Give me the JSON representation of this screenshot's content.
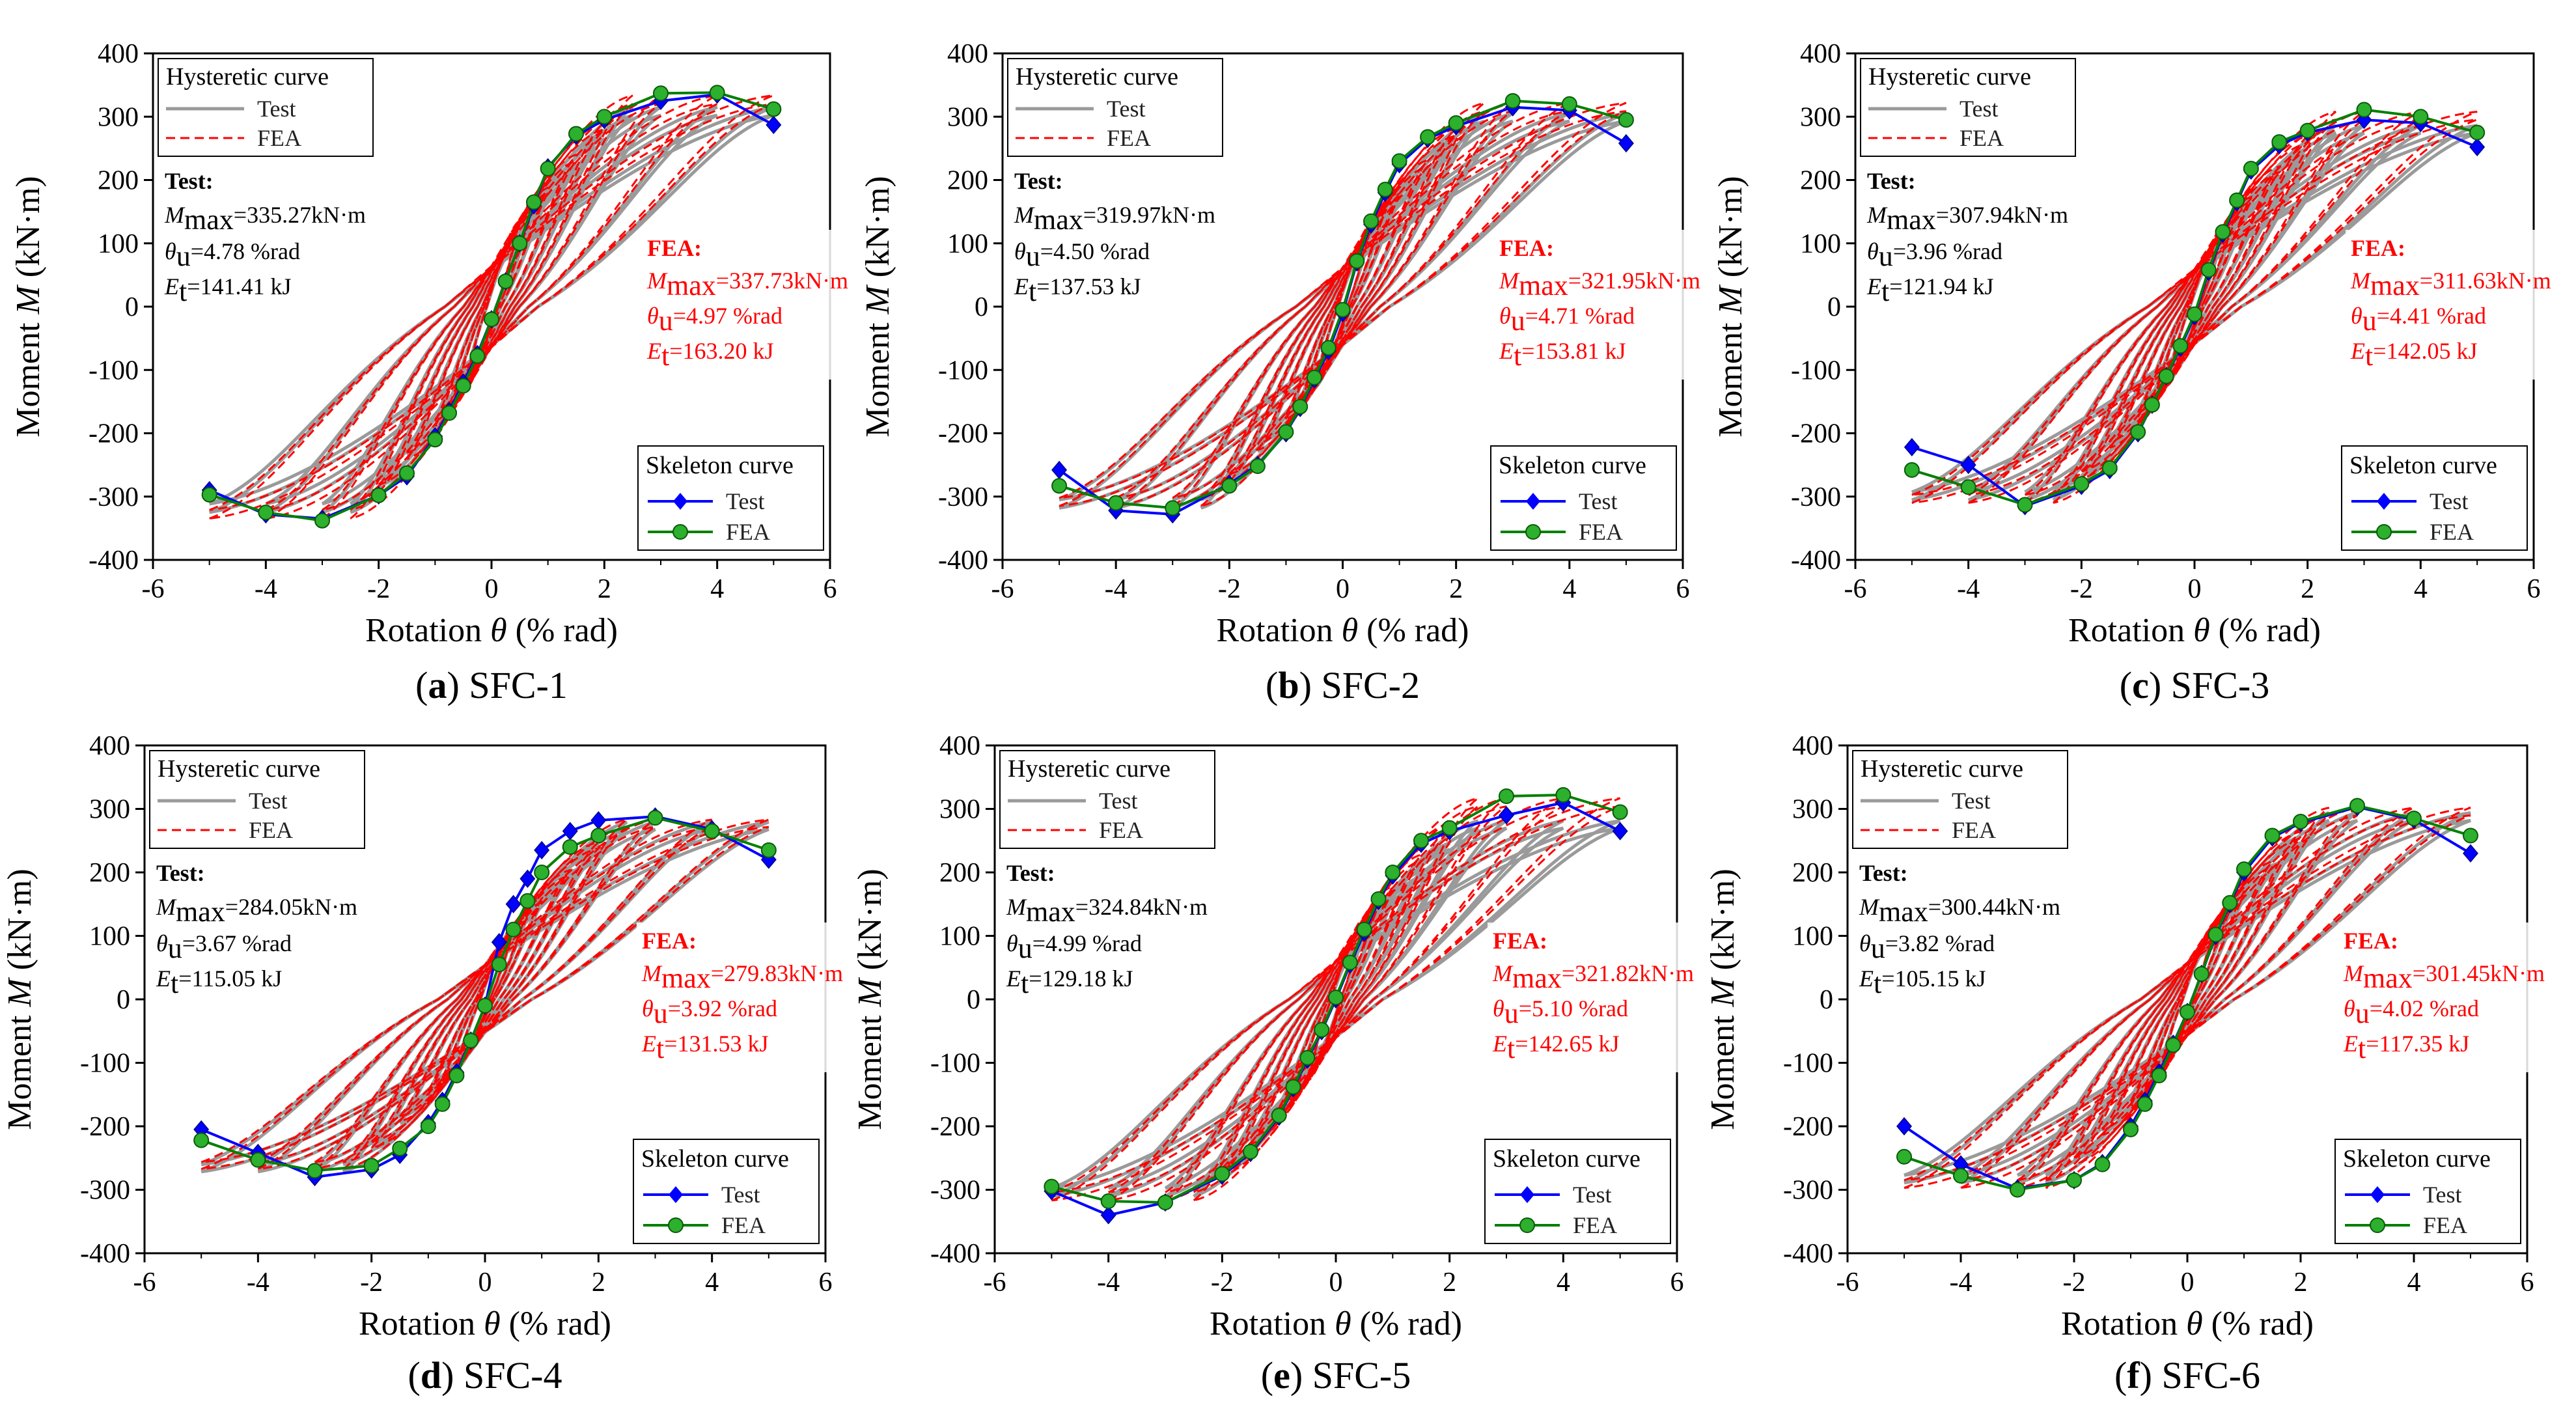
{
  "figure": {
    "axis_xlabel_prefix": "Rotation ",
    "axis_xlabel_symbol": "θ",
    "axis_xlabel_suffix": " (% rad)",
    "axis_ylabel_prefix": "Moment ",
    "axis_ylabel_symbol": "M",
    "axis_ylabel_suffix": " (kN·m)",
    "hysteretic_legend": {
      "title": "Hysteretic curve",
      "test": "Test",
      "fea": "FEA"
    },
    "skeleton_legend": {
      "title": "Skeleton curve",
      "test": "Test",
      "fea": "FEA"
    },
    "ann_test_heading": "Test:",
    "ann_fea_heading": "FEA:",
    "sym_M": "M",
    "sub_max": "max",
    "sym_theta": "θ",
    "sub_u": "u",
    "sym_E": "E",
    "sub_t": "t",
    "colors": {
      "test_skeleton": "#0000ff",
      "fea_skeleton": "#008000",
      "test_hyst": "#9a9a9a",
      "fea_hyst": "#ff0000",
      "fea_text": "#ff0000"
    }
  },
  "chart_data": [
    {
      "type": "line",
      "panel": "a",
      "label": "SFC-1",
      "xlim": [
        -6,
        6
      ],
      "ylim": [
        -400,
        400
      ],
      "xticks": [
        "-6",
        "-4",
        "-2",
        "0",
        "2",
        "4",
        "6"
      ],
      "yticks": [
        "-400",
        "-300",
        "-200",
        "-100",
        "0",
        "100",
        "200",
        "300",
        "400"
      ],
      "test": {
        "Mmax": "=335.27kN·m",
        "theta": "=4.78 %rad",
        "Et": "=141.41 kJ"
      },
      "fea": {
        "Mmax": "=337.73kN·m",
        "theta": "=4.97 %rad",
        "Et": "=163.20 kJ"
      },
      "series": [
        {
          "name": "Test",
          "x": [
            -5,
            -4,
            -3,
            -2,
            -1.5,
            -1,
            -0.75,
            -0.5,
            -0.25,
            0,
            0.25,
            0.5,
            0.75,
            1,
            1.5,
            2,
            3,
            4,
            5
          ],
          "y": [
            -290,
            -328,
            -335,
            -298,
            -268,
            -205,
            -165,
            -120,
            -75,
            -20,
            40,
            100,
            160,
            220,
            270,
            295,
            325,
            335,
            287
          ]
        },
        {
          "name": "FEA",
          "x": [
            -5,
            -4,
            -3,
            -2,
            -1.5,
            -1,
            -0.75,
            -0.5,
            -0.25,
            0,
            0.25,
            0.5,
            0.75,
            1,
            1.5,
            2,
            3,
            4,
            5
          ],
          "y": [
            -297,
            -325,
            -338,
            -298,
            -263,
            -210,
            -168,
            -125,
            -78,
            -20,
            40,
            100,
            165,
            218,
            273,
            300,
            337,
            338,
            312
          ]
        }
      ]
    },
    {
      "type": "line",
      "panel": "b",
      "label": "SFC-2",
      "xlim": [
        -6,
        6
      ],
      "ylim": [
        -400,
        400
      ],
      "xticks": [
        "-6",
        "-4",
        "-2",
        "0",
        "2",
        "4",
        "6"
      ],
      "yticks": [
        "-400",
        "-300",
        "-200",
        "-100",
        "0",
        "100",
        "200",
        "300",
        "400"
      ],
      "test": {
        "Mmax": "=319.97kN·m",
        "theta": "=4.50 %rad",
        "Et": "=137.53 kJ"
      },
      "fea": {
        "Mmax": "=321.95kN·m",
        "theta": "=4.71 %rad",
        "Et": "=153.81 kJ"
      },
      "series": [
        {
          "name": "Test",
          "x": [
            -5,
            -4,
            -3,
            -2,
            -1.5,
            -1,
            -0.75,
            -0.5,
            -0.25,
            0,
            0.25,
            0.5,
            0.75,
            1,
            1.5,
            2,
            3,
            4,
            5
          ],
          "y": [
            -258,
            -322,
            -328,
            -280,
            -250,
            -200,
            -160,
            -115,
            -70,
            -10,
            70,
            130,
            180,
            225,
            265,
            285,
            315,
            310,
            258
          ]
        },
        {
          "name": "FEA",
          "x": [
            -5,
            -4,
            -3,
            -2,
            -1.5,
            -1,
            -0.75,
            -0.5,
            -0.25,
            0,
            0.25,
            0.5,
            0.75,
            1,
            1.5,
            2,
            3,
            4,
            5
          ],
          "y": [
            -283,
            -310,
            -318,
            -283,
            -252,
            -198,
            -158,
            -112,
            -65,
            -5,
            72,
            135,
            185,
            230,
            268,
            290,
            325,
            320,
            295
          ]
        }
      ]
    },
    {
      "type": "line",
      "panel": "c",
      "label": "SFC-3",
      "xlim": [
        -6,
        6
      ],
      "ylim": [
        -400,
        400
      ],
      "xticks": [
        "-6",
        "-4",
        "-2",
        "0",
        "2",
        "4",
        "6"
      ],
      "yticks": [
        "-400",
        "-300",
        "-200",
        "-100",
        "0",
        "100",
        "200",
        "300",
        "400"
      ],
      "test": {
        "Mmax": "=307.94kN·m",
        "theta": "=3.96 %rad",
        "Et": "=121.94 kJ"
      },
      "fea": {
        "Mmax": "=311.63kN·m",
        "theta": "=4.41 %rad",
        "Et": "=142.05 kJ"
      },
      "series": [
        {
          "name": "Test",
          "x": [
            -5,
            -4,
            -3,
            -2,
            -1.5,
            -1,
            -0.75,
            -0.5,
            -0.25,
            0,
            0.25,
            0.5,
            0.75,
            1,
            1.5,
            2,
            3,
            4,
            5
          ],
          "y": [
            -222,
            -250,
            -315,
            -283,
            -258,
            -200,
            -155,
            -110,
            -65,
            -15,
            55,
            115,
            165,
            215,
            255,
            275,
            295,
            290,
            252
          ]
        },
        {
          "name": "FEA",
          "x": [
            -5,
            -4,
            -3,
            -2,
            -1.5,
            -1,
            -0.75,
            -0.5,
            -0.25,
            0,
            0.25,
            0.5,
            0.75,
            1,
            1.5,
            2,
            3,
            4,
            5
          ],
          "y": [
            -258,
            -285,
            -313,
            -280,
            -255,
            -198,
            -155,
            -110,
            -62,
            -12,
            58,
            118,
            168,
            218,
            260,
            278,
            311,
            300,
            275
          ]
        }
      ]
    },
    {
      "type": "line",
      "panel": "d",
      "label": "SFC-4",
      "xlim": [
        -6,
        6
      ],
      "ylim": [
        -400,
        400
      ],
      "xticks": [
        "-6",
        "-4",
        "-2",
        "0",
        "2",
        "4",
        "6"
      ],
      "yticks": [
        "-400",
        "-300",
        "-200",
        "-100",
        "0",
        "100",
        "200",
        "300",
        "400"
      ],
      "test": {
        "Mmax": "=284.05kN·m",
        "theta": "=3.67 %rad",
        "Et": "=115.05 kJ"
      },
      "fea": {
        "Mmax": "=279.83kN·m",
        "theta": "=3.92 %rad",
        "Et": "=131.53 kJ"
      },
      "series": [
        {
          "name": "Test",
          "x": [
            -5,
            -4,
            -3,
            -2,
            -1.5,
            -1,
            -0.75,
            -0.5,
            -0.25,
            0,
            0.25,
            0.5,
            0.75,
            1,
            1.5,
            2,
            3,
            4,
            5
          ],
          "y": [
            -205,
            -242,
            -280,
            -268,
            -245,
            -195,
            -160,
            -115,
            -65,
            -10,
            90,
            150,
            190,
            235,
            265,
            282,
            288,
            268,
            220
          ]
        },
        {
          "name": "FEA",
          "x": [
            -5,
            -4,
            -3,
            -2,
            -1.5,
            -1,
            -0.75,
            -0.5,
            -0.25,
            0,
            0.25,
            0.5,
            0.75,
            1,
            1.5,
            2,
            3,
            4,
            5
          ],
          "y": [
            -222,
            -253,
            -270,
            -262,
            -235,
            -200,
            -165,
            -120,
            -65,
            -10,
            55,
            110,
            155,
            200,
            240,
            258,
            286,
            265,
            235
          ]
        }
      ]
    },
    {
      "type": "line",
      "panel": "e",
      "label": "SFC-5",
      "xlim": [
        -6,
        6
      ],
      "ylim": [
        -400,
        400
      ],
      "xticks": [
        "-6",
        "-4",
        "-2",
        "0",
        "2",
        "4",
        "6"
      ],
      "yticks": [
        "-400",
        "-300",
        "-200",
        "-100",
        "0",
        "100",
        "200",
        "300",
        "400"
      ],
      "test": {
        "Mmax": "=324.84kN·m",
        "theta": "=4.99 %rad",
        "Et": "=129.18 kJ"
      },
      "fea": {
        "Mmax": "=321.82kN·m",
        "theta": "=5.10 %rad",
        "Et": "=142.65 kJ"
      },
      "series": [
        {
          "name": "Test",
          "x": [
            -5,
            -4,
            -3,
            -2,
            -1.5,
            -1,
            -0.75,
            -0.5,
            -0.25,
            0,
            0.25,
            0.5,
            0.75,
            1,
            1.5,
            2,
            3,
            4,
            5
          ],
          "y": [
            -302,
            -340,
            -320,
            -278,
            -242,
            -185,
            -140,
            -95,
            -50,
            0,
            55,
            105,
            155,
            195,
            245,
            265,
            290,
            310,
            265
          ]
        },
        {
          "name": "FEA",
          "x": [
            -5,
            -4,
            -3,
            -2,
            -1.5,
            -1,
            -0.75,
            -0.5,
            -0.25,
            0,
            0.25,
            0.5,
            0.75,
            1,
            1.5,
            2,
            3,
            4,
            5
          ],
          "y": [
            -295,
            -318,
            -320,
            -275,
            -240,
            -183,
            -138,
            -92,
            -48,
            3,
            58,
            110,
            158,
            200,
            250,
            270,
            320,
            322,
            295
          ]
        }
      ]
    },
    {
      "type": "line",
      "panel": "f",
      "label": "SFC-6",
      "xlim": [
        -6,
        6
      ],
      "ylim": [
        -400,
        400
      ],
      "xticks": [
        "-6",
        "-4",
        "-2",
        "0",
        "2",
        "4",
        "6"
      ],
      "yticks": [
        "-400",
        "-300",
        "-200",
        "-100",
        "0",
        "100",
        "200",
        "300",
        "400"
      ],
      "test": {
        "Mmax": "=300.44kN·m",
        "theta": "=3.82 %rad",
        "Et": "=105.15 kJ"
      },
      "fea": {
        "Mmax": "=301.45kN·m",
        "theta": "=4.02 %rad",
        "Et": "=117.35 kJ"
      },
      "series": [
        {
          "name": "Test",
          "x": [
            -5,
            -4,
            -3,
            -2,
            -1.5,
            -1,
            -0.75,
            -0.5,
            -0.25,
            0,
            0.25,
            0.5,
            0.75,
            1,
            1.5,
            2,
            3,
            4,
            5
          ],
          "y": [
            -200,
            -260,
            -298,
            -285,
            -258,
            -200,
            -160,
            -115,
            -70,
            -20,
            40,
            100,
            150,
            200,
            255,
            278,
            303,
            283,
            230
          ]
        },
        {
          "name": "FEA",
          "x": [
            -5,
            -4,
            -3,
            -2,
            -1.5,
            -1,
            -0.75,
            -0.5,
            -0.25,
            0,
            0.25,
            0.5,
            0.75,
            1,
            1.5,
            2,
            3,
            4,
            5
          ],
          "y": [
            -248,
            -278,
            -300,
            -285,
            -260,
            -205,
            -165,
            -120,
            -72,
            -20,
            40,
            102,
            152,
            205,
            258,
            280,
            305,
            285,
            258
          ]
        }
      ]
    }
  ]
}
